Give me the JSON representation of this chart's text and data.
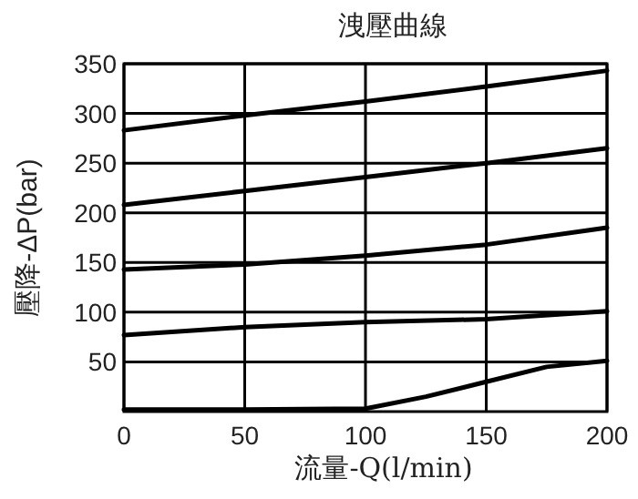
{
  "chart_data": {
    "type": "line",
    "title": "洩壓曲線",
    "xlabel": "流量-Q(l/min)",
    "ylabel": "壓降-ΔP(bar)",
    "xlim": [
      0,
      200
    ],
    "xticks": [
      0,
      50,
      100,
      150,
      200
    ],
    "ylim": [
      0,
      350
    ],
    "yticks": [
      50,
      100,
      150,
      200,
      250,
      300,
      350
    ],
    "grid": true,
    "line_style": "solid",
    "series": [
      {
        "color": "#000000",
        "x": [
          0,
          50,
          100,
          150,
          200
        ],
        "values": [
          283,
          298,
          312,
          327,
          343
        ]
      },
      {
        "color": "#000000",
        "x": [
          0,
          50,
          100,
          150,
          200
        ],
        "values": [
          208,
          222,
          236,
          250,
          265
        ]
      },
      {
        "color": "#000000",
        "x": [
          0,
          50,
          100,
          150,
          200
        ],
        "values": [
          143,
          148,
          157,
          168,
          185
        ]
      },
      {
        "color": "#000000",
        "x": [
          0,
          50,
          100,
          150,
          200
        ],
        "values": [
          77,
          85,
          90,
          93,
          101
        ]
      },
      {
        "color": "#000000",
        "x": [
          0,
          50,
          100,
          125,
          150,
          175,
          200
        ],
        "values": [
          2,
          2,
          3,
          15,
          30,
          45,
          51
        ]
      }
    ]
  }
}
